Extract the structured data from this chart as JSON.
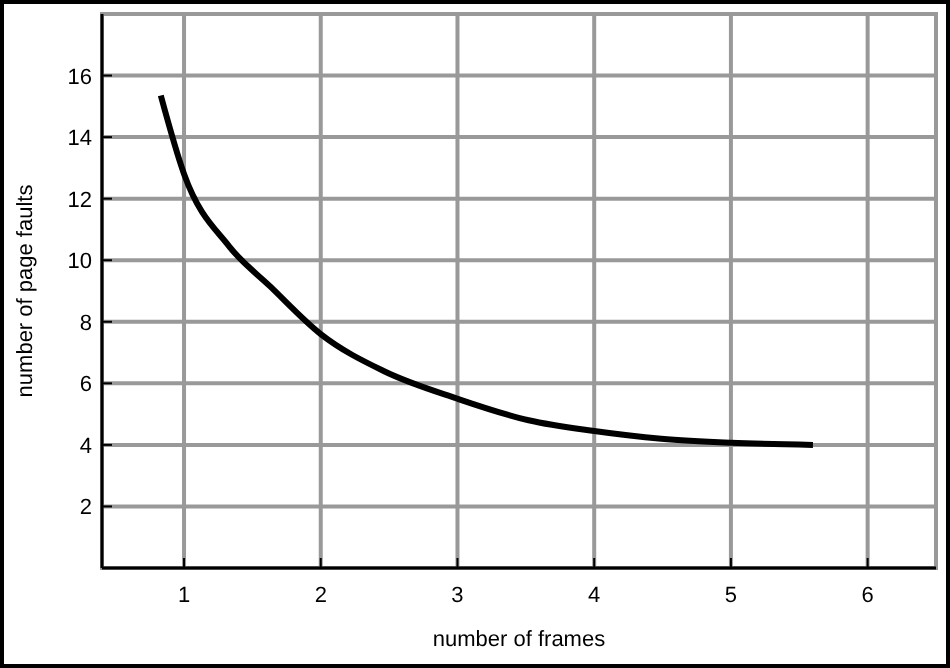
{
  "chart_data": {
    "type": "line",
    "xlabel": "number of frames",
    "ylabel": "number of page faults",
    "x": [
      0.83,
      1,
      1.33,
      1.63,
      2,
      2.46,
      3,
      3.52,
      4,
      4.49,
      5,
      5.6
    ],
    "series": [
      {
        "color": "#000000",
        "values": [
          15.35,
          12.8,
          10.45,
          9.15,
          7.6,
          6.4,
          5.5,
          4.8,
          4.45,
          4.2,
          4.07,
          4.0
        ]
      }
    ],
    "xlim": [
      0.4,
      6.5
    ],
    "ylim": [
      0,
      18
    ],
    "xticks": [
      1,
      2,
      3,
      4,
      5,
      6
    ],
    "yticks": [
      2,
      4,
      6,
      8,
      10,
      12,
      14,
      16
    ],
    "grid": true,
    "marker": "none",
    "line_style": "solid"
  }
}
